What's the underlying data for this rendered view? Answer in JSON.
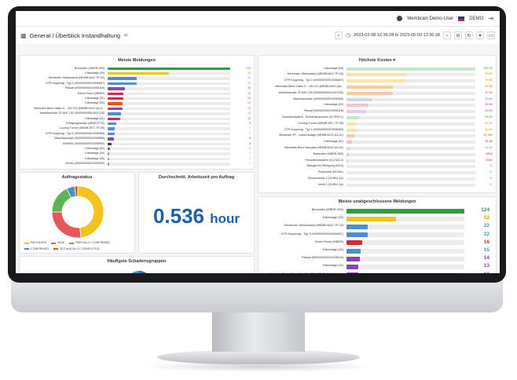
{
  "topbar": {
    "user": "Membrain Demo-User",
    "lang": "DEMO"
  },
  "titlebar": {
    "title": "General / Überblick Instandhaltung",
    "timerange": "2023-02-08 12:36:28 to 2023-05-09 13:36:28"
  },
  "meiste_meldungen": {
    "title": "Meiste Meldungen",
    "color_default": "#4c8fcf",
    "rows": [
      {
        "label": "Brennofen (MBDR-S50)",
        "value": 125,
        "pct": 1.0,
        "color": "#2e9e44",
        "vcolor": "#2e9e44"
      },
      {
        "label": "Kläranlage (00)",
        "value": 54,
        "pct": 0.5,
        "color": "#f2c31a",
        "vcolor": "#d4a400"
      },
      {
        "label": "Membrain: Messestand (MEMB-MAZ-TP-02)",
        "value": 21,
        "pct": 0.24,
        "color": "#4c8fcf",
        "vcolor": "#4c8fcf"
      },
      {
        "label": "KTR Kupplung - Typ 3 (000000000010006967)",
        "value": 21,
        "pct": 0.24,
        "color": "#4c8fcf",
        "vcolor": "#4c8fcf"
      },
      {
        "label": "Passat (000000000010006116)",
        "value": 15,
        "pct": 0.14,
        "color": "#8e44ad",
        "vcolor": "#8e44ad"
      },
      {
        "label": "Demo Room (MBDR)",
        "value": 14,
        "pct": 0.13,
        "color": "#d9263b",
        "vcolor": "#d9263b"
      },
      {
        "label": "Kläranlage (01)",
        "value": 14,
        "pct": 0.13,
        "color": "#d9263b",
        "vcolor": "#d9263b"
      },
      {
        "label": "Kläranlage (02)",
        "value": 13,
        "pct": 0.12,
        "color": "#e6550d",
        "vcolor": "#e6550d"
      },
      {
        "label": "Mercedes Benz Citaro G - OM 470 (MEMB-MVG-AA-0...",
        "value": 13,
        "pct": 0.12,
        "color": "#8e44ad",
        "vcolor": "#8e44ad"
      },
      {
        "label": "Antriebsachse ZF AVE 130 (000000000010007225)",
        "value": 12,
        "pct": 0.11,
        "color": "#4c8fcf",
        "vcolor": "#4c8fcf"
      },
      {
        "label": "Kläranlage (01)",
        "value": 11,
        "pct": 0.1,
        "color": "#d9263b",
        "vcolor": "#d9263b"
      },
      {
        "label": "Fertigungsstraße (MBDR-FTS)",
        "value": 8,
        "pct": 0.07,
        "color": "#4c8fcf",
        "vcolor": "#4c8fcf"
      },
      {
        "label": "Cooling Tunnel (MEMB-EFC-TP-05)",
        "value": 7,
        "pct": 0.06,
        "color": "#4c8fcf",
        "vcolor": "#4c8fcf"
      },
      {
        "label": "KTR Kupplung - Typ 4 (000000000010006965)",
        "value": 7,
        "pct": 0.06,
        "color": "#4c8fcf",
        "vcolor": "#4c8fcf"
      },
      {
        "label": "Maischepumpe (000000000010006956)",
        "value": 6,
        "pct": 0.05,
        "color": "#8e44ad",
        "vcolor": "#8e44ad"
      },
      {
        "label": "2069000 (000000000010006900)",
        "value": 3,
        "pct": 0.03,
        "color": "#333333",
        "vcolor": "#333333"
      },
      {
        "label": "Kläranlage (00)",
        "value": 2,
        "pct": 0.02,
        "color": "#8e44ad",
        "vcolor": "#8e44ad"
      },
      {
        "label": "Kläranlage (04)",
        "value": 1,
        "pct": 0.01,
        "color": "#9b9b9b",
        "vcolor": "#9b9b9b"
      },
      {
        "label": "Kläranlage (06)",
        "value": 1,
        "pct": 0.01,
        "color": "#9b9b9b",
        "vcolor": "#9b9b9b"
      },
      {
        "label": "oScillo (000000000010009903)",
        "value": 1,
        "pct": 0.01,
        "color": "#9b9b9b",
        "vcolor": "#9b9b9b"
      }
    ]
  },
  "hoechste_kosten": {
    "title": "Höchste Kosten",
    "rows": [
      {
        "label": "Kläranlage (00)",
        "value": "€29.7K",
        "pct": 1.0,
        "color": "#c8e6c9",
        "vcolor": "#2e9e44"
      },
      {
        "label": "Membrain: Messestand (MEMB-MAZ-TP-02)",
        "value": "€8.8K",
        "pct": 0.46,
        "color": "#fbe3a6",
        "vcolor": "#d4a400"
      },
      {
        "label": "KTR Kupplung - Typ 3 (000000000010006967)",
        "value": "€8.5K",
        "pct": 0.46,
        "color": "#fbe3a6",
        "vcolor": "#d4a400"
      },
      {
        "label": "Mercedes Benz Citaro G - OM 470 (MEMB-MVG-AA...",
        "value": "€7.6K",
        "pct": 0.36,
        "color": "#f8c9a0",
        "vcolor": "#e6550d"
      },
      {
        "label": "Antriebsachse ZF AVE 130 (000000000010007225)",
        "value": "€7.6K",
        "pct": 0.36,
        "color": "#f8c9a0",
        "vcolor": "#e6550d"
      },
      {
        "label": "Maischepumpe (000000000010006956)",
        "value": "€5.6K",
        "pct": 0.2,
        "color": "#c9d9f2",
        "vcolor": "#4c8fcf"
      },
      {
        "label": "Kläranlage (02)",
        "value": "€4.6K",
        "pct": 0.17,
        "color": "#f4c2c8",
        "vcolor": "#d9263b"
      },
      {
        "label": "Passat (000000000010006116)",
        "value": "€4.5K",
        "pct": 0.15,
        "color": "#e0cdea",
        "vcolor": "#8e44ad"
      },
      {
        "label": "Zulaufpumpwerk - Schneckenpumpe (02.ZPW-1)",
        "value": "€3.2K",
        "pct": 0.1,
        "color": "#c8e6c9",
        "vcolor": "#2e9e44"
      },
      {
        "label": "Cooling Tunnel (MEMB-EFC-TP-05)",
        "value": "€2.6K",
        "pct": 0.08,
        "color": "#fbe3a6",
        "vcolor": "#d4a400"
      },
      {
        "label": "KTR Kupplung - Typ 4 (000000000010006965)",
        "value": "€2.6K",
        "pct": 0.08,
        "color": "#fbe3a6",
        "vcolor": "#d4a400"
      },
      {
        "label": "Membrain SF - Lackieranlage (MEMB-MVG-AA-01)",
        "value": "€1.96K",
        "pct": 0.06,
        "color": "#f8c9a0",
        "vcolor": "#e6550d"
      },
      {
        "label": "Kläranlage (01)",
        "value": "€1.4K",
        "pct": 0.04,
        "color": "#f4c2c8",
        "vcolor": "#d9263b"
      },
      {
        "label": "Mercedes Benz Fahrgast (MEMB-MVG-AA-01)",
        "value": "€1.1K",
        "pct": 0.03,
        "color": "#c9d9f2",
        "vcolor": "#4c8fcf"
      },
      {
        "label": "Brennofen (MBDR-S50)",
        "value": "€553",
        "pct": 0.02,
        "color": "#f4c2c8",
        "vcolor": "#d9263b"
      },
      {
        "label": "Fernwärmesystem (01-HZA-0)",
        "value": "€361",
        "pct": 0.01,
        "color": "#f4c2c8",
        "vcolor": "#d9263b"
      },
      {
        "label": "Biologische Reinigung (03-B)",
        "value": "€0",
        "pct": 0.0,
        "color": "#eeeeee",
        "vcolor": "#aaaaaa"
      },
      {
        "label": "Pumpwerk (00-B01)",
        "value": "€0",
        "pct": 0.0,
        "color": "#eeeeee",
        "vcolor": "#aaaaaa"
      },
      {
        "label": "Pumpenblock 1 (00-B01-1A)",
        "value": "€0",
        "pct": 0.0,
        "color": "#eeeeee",
        "vcolor": "#aaaaaa"
      },
      {
        "label": "Ventil 1 (00-B01-1A)",
        "value": "€0",
        "pct": 0.0,
        "color": "#eeeeee",
        "vcolor": "#aaaaaa"
      }
    ]
  },
  "auftragsstatus": {
    "title": "Auftragsstatus",
    "segments": [
      {
        "name": "RELEASED",
        "value": 48,
        "color": "#f2c31a"
      },
      {
        "name": "NEW",
        "value": 27,
        "color": "#e8575a"
      },
      {
        "name": "PARTIALLY CONFIRMED",
        "value": 18,
        "color": "#5ab552"
      },
      {
        "name": "CONFIRMED",
        "value": 5,
        "color": "#4c8fcf"
      },
      {
        "name": "TECHNICALLY COMPLETED",
        "value": 2,
        "color": "#e6550d"
      }
    ]
  },
  "arbeitszeit": {
    "title": "Durchschnitt. Arbeitszeit pro Auftrag",
    "value": "0.536",
    "unit": "hour"
  },
  "schadensgruppen": {
    "title": "Häufigste Schadensgruppen"
  },
  "unabgeschlossen": {
    "title": "Meiste unabgeschlossene Meldungen",
    "rows": [
      {
        "label": "Brennofen (MBDR-S50)",
        "value": "124",
        "pct": 1.0,
        "color": "#2e9e44",
        "vcolor": "#2e9e44"
      },
      {
        "label": "Kläranlage (00)",
        "value": "52",
        "pct": 0.42,
        "color": "#f2c31a",
        "vcolor": "#d4a400"
      },
      {
        "label": "Membrain: Messestand (MEMB-MAZ-TP-02)",
        "value": "22",
        "pct": 0.18,
        "color": "#4c8fcf",
        "vcolor": "#4c8fcf"
      },
      {
        "label": "KTR Kupplung - Typ 3 (000000000010006967)",
        "value": "22",
        "pct": 0.18,
        "color": "#4c8fcf",
        "vcolor": "#4c8fcf"
      },
      {
        "label": "Demo Room (MBDR)",
        "value": "16",
        "pct": 0.13,
        "color": "#d9263b",
        "vcolor": "#d9263b"
      },
      {
        "label": "Kläranlage (02)",
        "value": "15",
        "pct": 0.12,
        "color": "#4c8fcf",
        "vcolor": "#4c8fcf"
      },
      {
        "label": "Passat (000000000010006116)",
        "value": "14",
        "pct": 0.11,
        "color": "#8e44ad",
        "vcolor": "#8e44ad"
      },
      {
        "label": "Kläranlage (01)",
        "value": "13",
        "pct": 0.1,
        "color": "#8e44ad",
        "vcolor": "#8e44ad"
      },
      {
        "label": "Mercedes Benz Citaro G - OM 470 (MEMB-MVG-AA-0...",
        "value": "13",
        "pct": 0.1,
        "color": "#8e44ad",
        "vcolor": "#8e44ad"
      }
    ]
  }
}
